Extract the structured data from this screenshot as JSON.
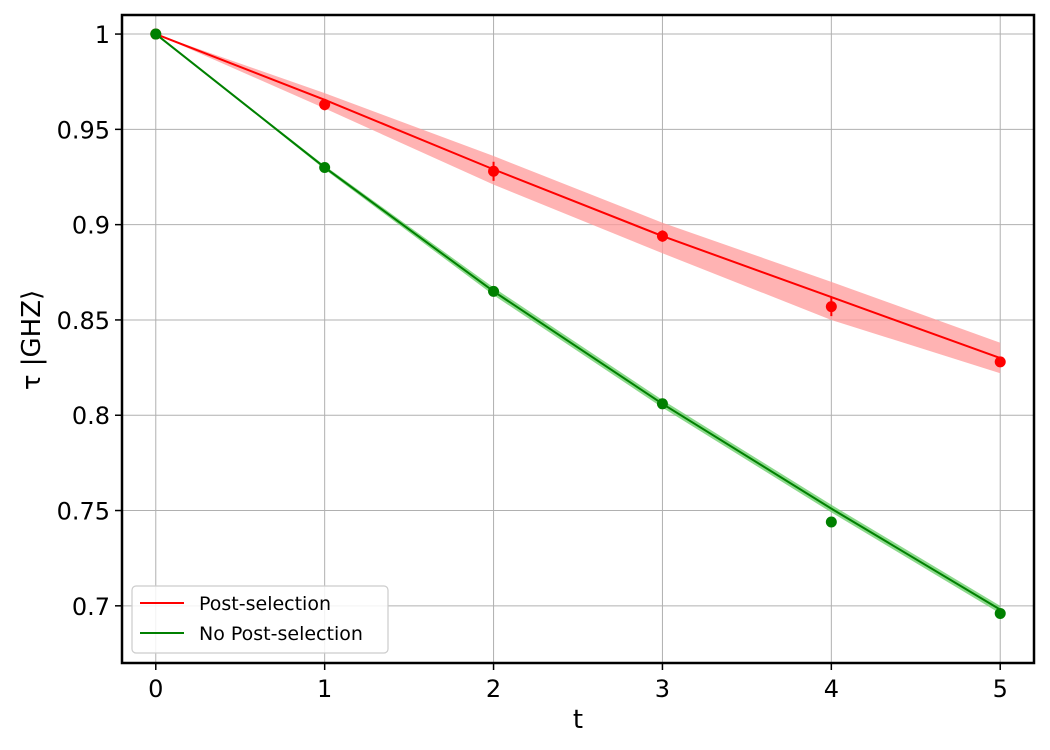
{
  "chart_data": {
    "type": "line",
    "title": "",
    "xlabel": "t",
    "ylabel": "τ    |GHZ⟩",
    "xlim": [
      -0.2,
      5.2
    ],
    "ylim": [
      0.67,
      1.01
    ],
    "grid": true,
    "legend_position": "lower-left",
    "x_ticks": [
      0,
      1,
      2,
      3,
      4,
      5
    ],
    "x_tick_labels": [
      "0",
      "1",
      "2",
      "3",
      "4",
      "5"
    ],
    "y_ticks": [
      0.7,
      0.75,
      0.8,
      0.85,
      0.9,
      0.95,
      1.0
    ],
    "y_tick_labels": [
      "0.7",
      "0.75",
      "0.8",
      "0.85",
      "0.9",
      "0.95",
      "1"
    ],
    "series": [
      {
        "name": "Post-selection",
        "color": "#ff0000",
        "band_color": "#ff9999",
        "line": {
          "x": [
            0,
            1,
            2,
            3,
            4,
            5
          ],
          "y": [
            1.0,
            0.9655,
            0.929,
            0.894,
            0.862,
            0.83
          ]
        },
        "band_upper": {
          "x": [
            0,
            1,
            2,
            3,
            4,
            5
          ],
          "y": [
            1.0,
            0.969,
            0.936,
            0.901,
            0.87,
            0.838
          ]
        },
        "band_lower": {
          "x": [
            0,
            1,
            2,
            3,
            4,
            5
          ],
          "y": [
            1.0,
            0.961,
            0.921,
            0.885,
            0.85,
            0.822
          ]
        },
        "points": {
          "x": [
            0,
            1,
            2,
            3,
            4,
            5
          ],
          "y": [
            1.0,
            0.963,
            0.928,
            0.894,
            0.857,
            0.828
          ],
          "err": [
            0.001,
            0.003,
            0.005,
            0.003,
            0.005,
            0.002
          ]
        }
      },
      {
        "name": "No Post-selection",
        "color": "#008000",
        "band_color": "#66cc66",
        "line": {
          "x": [
            0,
            1,
            2,
            3,
            4,
            5
          ],
          "y": [
            1.0,
            0.93,
            0.865,
            0.806,
            0.751,
            0.698
          ]
        },
        "band_upper": {
          "x": [
            0,
            1,
            2,
            3,
            4,
            5
          ],
          "y": [
            1.0,
            0.931,
            0.867,
            0.808,
            0.753,
            0.7
          ]
        },
        "band_lower": {
          "x": [
            0,
            1,
            2,
            3,
            4,
            5
          ],
          "y": [
            1.0,
            0.929,
            0.863,
            0.804,
            0.749,
            0.696
          ]
        },
        "points": {
          "x": [
            0,
            1,
            2,
            3,
            4,
            5
          ],
          "y": [
            1.0,
            0.93,
            0.865,
            0.806,
            0.744,
            0.696
          ],
          "err": [
            0.0,
            0.0,
            0.0,
            0.0,
            0.0,
            0.0
          ]
        }
      }
    ]
  }
}
